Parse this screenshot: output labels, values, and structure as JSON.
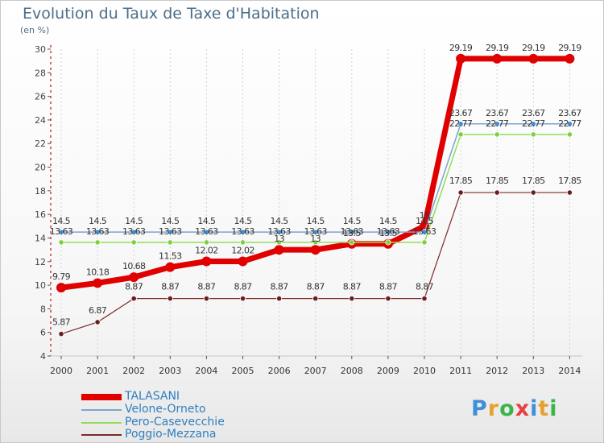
{
  "chart_data": {
    "type": "line",
    "title": "Evolution du Taux de Taxe d'Habitation",
    "ylabel": "(en %)",
    "ylim": [
      4,
      30
    ],
    "yticks": [
      4,
      6,
      8,
      10,
      12,
      14,
      16,
      18,
      20,
      22,
      24,
      26,
      28,
      30
    ],
    "categories": [
      "2000",
      "2001",
      "2002",
      "2003",
      "2004",
      "2005",
      "2006",
      "2007",
      "2008",
      "2009",
      "2010",
      "2011",
      "2012",
      "2013",
      "2014"
    ],
    "series": [
      {
        "name": "TALASANI",
        "color": "#e00000",
        "values": [
          9.79,
          10.18,
          10.68,
          11.53,
          12.02,
          12.02,
          13,
          13,
          13.5,
          13.5,
          15,
          29.19,
          29.19,
          29.19,
          29.19
        ],
        "labels": [
          "9.79",
          "10.18",
          "10.68",
          "11.53",
          "12.02",
          "12.02",
          "13",
          "13",
          "13.5",
          "13.5",
          "15",
          "29.19",
          "29.19",
          "29.19",
          "29.19"
        ]
      },
      {
        "name": "Velone-Orneto",
        "color": "#7ea4cc",
        "values": [
          14.5,
          14.5,
          14.5,
          14.5,
          14.5,
          14.5,
          14.5,
          14.5,
          14.5,
          14.5,
          14.5,
          23.67,
          23.67,
          23.67,
          23.67
        ],
        "labels": [
          "14.5",
          "14.5",
          "14.5",
          "14.5",
          "14.5",
          "14.5",
          "14.5",
          "14.5",
          "14.5",
          "14.5",
          "14.5",
          "23.67",
          "23.67",
          "23.67",
          "23.67"
        ]
      },
      {
        "name": "Pero-Casevecchie",
        "color": "#8fdd5a",
        "values": [
          13.63,
          13.63,
          13.63,
          13.63,
          13.63,
          13.63,
          13.63,
          13.63,
          13.63,
          13.63,
          13.63,
          22.77,
          22.77,
          22.77,
          22.77
        ],
        "labels": [
          "13.63",
          "13.63",
          "13.63",
          "13.63",
          "13.63",
          "13.63",
          "13.63",
          "13.63",
          "13.63",
          "13.63",
          "13.63",
          "22.77",
          "22.77",
          "22.77",
          "22.77"
        ]
      },
      {
        "name": "Poggio-Mezzana",
        "color": "#7a2a2a",
        "values": [
          5.87,
          6.87,
          8.87,
          8.87,
          8.87,
          8.87,
          8.87,
          8.87,
          8.87,
          8.87,
          8.87,
          17.85,
          17.85,
          17.85,
          17.85
        ],
        "labels": [
          "5.87",
          "6.87",
          "8.87",
          "8.87",
          "8.87",
          "8.87",
          "8.87",
          "8.87",
          "8.87",
          "8.87",
          "8.87",
          "17.85",
          "17.85",
          "17.85",
          "17.85"
        ]
      }
    ]
  },
  "legend": {
    "items": [
      "TALASANI",
      "Velone-Orneto",
      "Pero-Casevecchie",
      "Poggio-Mezzana"
    ]
  },
  "logo": {
    "letters": [
      "P",
      "r",
      "o",
      "x",
      "i",
      "t",
      "i"
    ],
    "colors": [
      "#3f8fd8",
      "#e8a030",
      "#3cb44b",
      "#e84040",
      "#3f8fd8",
      "#e8a030",
      "#3cb44b"
    ]
  }
}
